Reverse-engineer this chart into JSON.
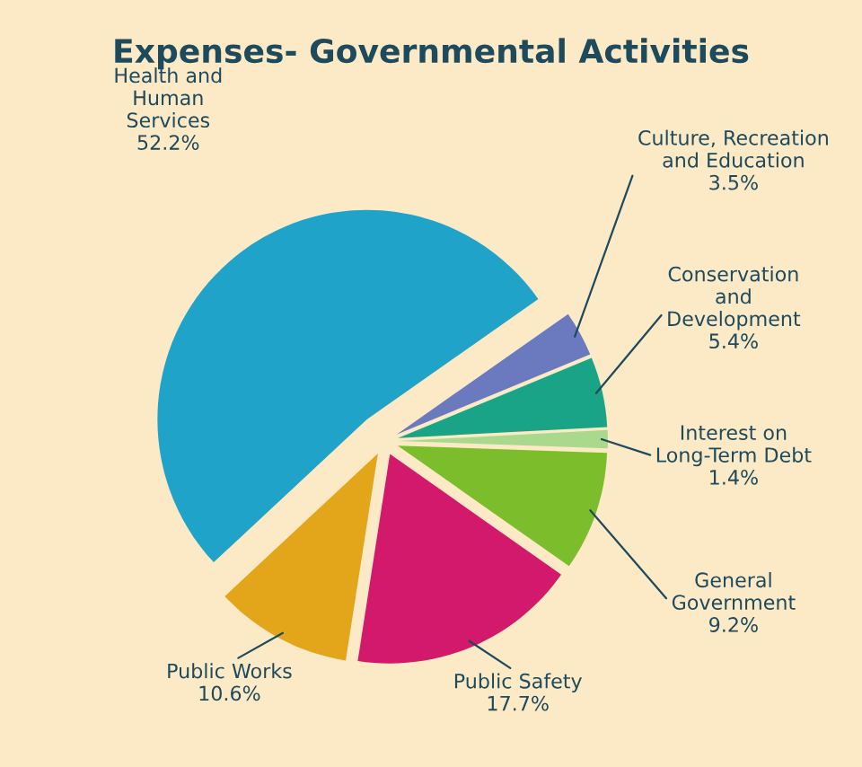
{
  "chart_data": {
    "type": "pie",
    "title": "Expenses- Governmental Activities",
    "categories": [
      "Interest on\nLong-Term Debt",
      "Conservation\nand\nDevelopment",
      "Culture, Recreation\nand Education",
      "Health and\nHuman\nServices",
      "Public Works",
      "Public Safety",
      "General\nGovernment"
    ],
    "values": [
      1.4,
      5.4,
      3.5,
      52.2,
      10.6,
      17.7,
      9.2
    ],
    "value_labels": [
      "1.4%",
      "5.4%",
      "3.5%",
      "52.2%",
      "10.6%",
      "17.7%",
      "9.2%"
    ],
    "colors": [
      "#a9d98c",
      "#1aa487",
      "#6b79bf",
      "#20a3c9",
      "#e3a61b",
      "#d3196b",
      "#7cbd2b"
    ]
  }
}
